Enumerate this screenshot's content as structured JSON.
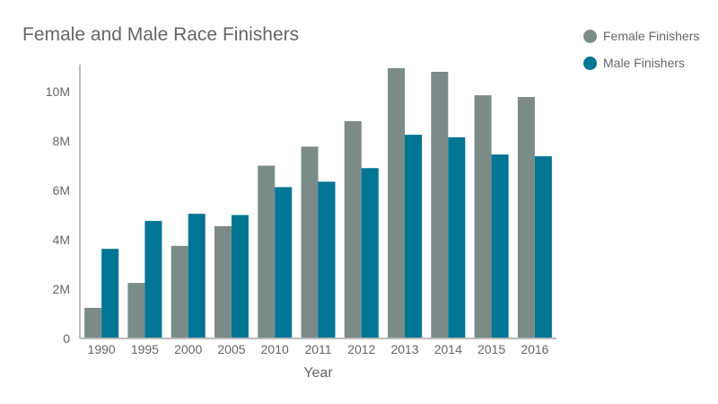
{
  "chart_data": {
    "type": "bar",
    "title": "Female and Male Race Finishers",
    "xlabel": "Year",
    "ylabel": "",
    "ylim": [
      0,
      11000000
    ],
    "yticks": [
      0,
      2000000,
      4000000,
      6000000,
      8000000,
      10000000
    ],
    "ytick_labels": [
      "0",
      "2M",
      "4M",
      "6M",
      "8M",
      "10M"
    ],
    "grid": false,
    "legend_position": "top-right",
    "categories": [
      "1990",
      "1995",
      "2000",
      "2005",
      "2010",
      "2011",
      "2012",
      "2013",
      "2014",
      "2015",
      "2016"
    ],
    "series": [
      {
        "name": "Female Finishers",
        "color": "#7a8b88",
        "values": [
          1240000,
          2250000,
          3750000,
          4550000,
          7000000,
          7770000,
          8800000,
          10950000,
          10800000,
          9850000,
          9780000
        ]
      },
      {
        "name": "Male Finishers",
        "color": "#007594",
        "values": [
          3630000,
          4760000,
          5050000,
          5000000,
          6130000,
          6350000,
          6900000,
          8250000,
          8150000,
          7450000,
          7380000
        ]
      }
    ]
  }
}
